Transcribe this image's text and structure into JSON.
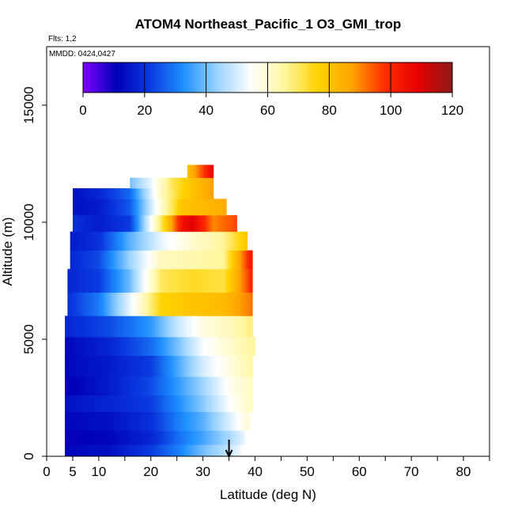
{
  "chart_data": {
    "type": "heatmap",
    "title": "ATOM4 Northeast_Pacific_1 O3_GMI_trop",
    "flights_label": "Flts: 1,2",
    "mmdd_label": "MMDD: 0424,0427",
    "xlabel": "Latitude (deg N)",
    "ylabel": "Altitude (m)",
    "xlim": [
      0,
      85
    ],
    "ylim": [
      0,
      17500
    ],
    "x_ticks": [
      0,
      5,
      10,
      20,
      30,
      40,
      50,
      60,
      70,
      80
    ],
    "y_ticks": [
      0,
      5000,
      10000,
      15000
    ],
    "colorbar": {
      "ticks": [
        0,
        20,
        40,
        60,
        80,
        100,
        120
      ],
      "range": [
        0,
        120
      ],
      "colors": [
        "#7f00ff",
        "#0000b8",
        "#0a3ae0",
        "#1e90ff",
        "#9cd3ff",
        "#ffffff",
        "#fff6a0",
        "#ffd200",
        "#ffa500",
        "#ff2a00",
        "#e60000",
        "#8b1a1a"
      ]
    },
    "arrow_latitude": 35,
    "layers": [
      {
        "alt": [
          0,
          500
        ],
        "lat": [
          3.5,
          38
        ],
        "values": [
          [
            3.5,
            12
          ],
          [
            12,
            14
          ],
          [
            20,
            22
          ],
          [
            25,
            30
          ],
          [
            30,
            40
          ],
          [
            35,
            48
          ],
          [
            38,
            55
          ]
        ]
      },
      {
        "alt": [
          500,
          1100
        ],
        "lat": [
          3.5,
          38
        ],
        "values": [
          [
            3.5,
            10
          ],
          [
            12,
            12
          ],
          [
            20,
            18
          ],
          [
            25,
            28
          ],
          [
            30,
            36
          ],
          [
            35,
            45
          ],
          [
            38,
            52
          ]
        ]
      },
      {
        "alt": [
          1100,
          1900
        ],
        "lat": [
          3.5,
          39
        ],
        "values": [
          [
            3.5,
            12
          ],
          [
            12,
            14
          ],
          [
            20,
            20
          ],
          [
            25,
            30
          ],
          [
            30,
            38
          ],
          [
            35,
            50
          ],
          [
            39,
            60
          ]
        ]
      },
      {
        "alt": [
          1900,
          2600
        ],
        "lat": [
          3.5,
          39.5
        ],
        "values": [
          [
            3.5,
            14
          ],
          [
            12,
            18
          ],
          [
            20,
            22
          ],
          [
            25,
            32
          ],
          [
            30,
            42
          ],
          [
            35,
            54
          ],
          [
            39.5,
            62
          ]
        ]
      },
      {
        "alt": [
          2600,
          3400
        ],
        "lat": [
          3.5,
          39.5
        ],
        "values": [
          [
            3.5,
            10
          ],
          [
            12,
            16
          ],
          [
            20,
            24
          ],
          [
            25,
            34
          ],
          [
            30,
            44
          ],
          [
            35,
            56
          ],
          [
            39.5,
            62
          ]
        ]
      },
      {
        "alt": [
          3400,
          4300
        ],
        "lat": [
          3.5,
          39.5
        ],
        "values": [
          [
            3.5,
            12
          ],
          [
            12,
            16
          ],
          [
            20,
            22
          ],
          [
            25,
            36
          ],
          [
            30,
            50
          ],
          [
            35,
            58
          ],
          [
            39.5,
            65
          ]
        ]
      },
      {
        "alt": [
          4300,
          5100
        ],
        "lat": [
          3.5,
          40
        ],
        "values": [
          [
            3.5,
            12
          ],
          [
            12,
            18
          ],
          [
            20,
            28
          ],
          [
            25,
            40
          ],
          [
            30,
            54
          ],
          [
            35,
            60
          ],
          [
            40,
            66
          ]
        ]
      },
      {
        "alt": [
          5100,
          6000
        ],
        "lat": [
          3.5,
          39.5
        ],
        "values": [
          [
            3.5,
            18
          ],
          [
            12,
            24
          ],
          [
            20,
            34
          ],
          [
            25,
            48
          ],
          [
            30,
            58
          ],
          [
            35,
            62
          ],
          [
            39.5,
            68
          ]
        ]
      },
      {
        "alt": [
          6000,
          7000
        ],
        "lat": [
          4,
          39.5
        ],
        "values": [
          [
            4,
            20
          ],
          [
            10,
            30
          ],
          [
            16,
            52
          ],
          [
            22,
            76
          ],
          [
            28,
            80
          ],
          [
            34,
            82
          ],
          [
            39.5,
            92
          ]
        ]
      },
      {
        "alt": [
          7000,
          8000
        ],
        "lat": [
          4,
          39.5
        ],
        "values": [
          [
            4,
            18
          ],
          [
            10,
            22
          ],
          [
            16,
            40
          ],
          [
            22,
            70
          ],
          [
            28,
            74
          ],
          [
            34,
            72
          ],
          [
            39.5,
            100
          ]
        ]
      },
      {
        "alt": [
          8000,
          8800
        ],
        "lat": [
          4.5,
          39.5
        ],
        "values": [
          [
            4.5,
            18
          ],
          [
            10,
            24
          ],
          [
            16,
            44
          ],
          [
            22,
            62
          ],
          [
            28,
            64
          ],
          [
            34,
            66
          ],
          [
            39.5,
            104
          ]
        ]
      },
      {
        "alt": [
          8800,
          9600
        ],
        "lat": [
          4.5,
          38.5
        ],
        "values": [
          [
            4.5,
            16
          ],
          [
            10,
            20
          ],
          [
            16,
            38
          ],
          [
            22,
            52
          ],
          [
            28,
            60
          ],
          [
            34,
            66
          ],
          [
            38.5,
            80
          ]
        ]
      },
      {
        "alt": [
          9600,
          10300
        ],
        "lat": [
          5,
          36.5
        ],
        "values": [
          [
            5,
            20
          ],
          [
            10,
            16
          ],
          [
            16,
            22
          ],
          [
            22,
            70
          ],
          [
            26,
            104
          ],
          [
            28,
            110
          ],
          [
            32,
            90
          ],
          [
            36.5,
            96
          ]
        ]
      },
      {
        "alt": [
          10300,
          11000
        ],
        "lat": [
          5,
          34.5
        ],
        "values": [
          [
            5,
            14
          ],
          [
            10,
            16
          ],
          [
            16,
            26
          ],
          [
            22,
            60
          ],
          [
            26,
            80
          ],
          [
            30,
            82
          ],
          [
            34.5,
            86
          ]
        ]
      },
      {
        "alt": [
          11000,
          11450
        ],
        "lat": [
          5,
          32
        ],
        "values": [
          [
            5,
            14
          ],
          [
            10,
            18
          ],
          [
            16,
            28
          ],
          [
            22,
            62
          ],
          [
            26,
            76
          ],
          [
            32,
            88
          ]
        ]
      },
      {
        "alt": [
          11450,
          11900
        ],
        "lat": [
          16,
          32
        ],
        "values": [
          [
            16,
            40
          ],
          [
            20,
            52
          ],
          [
            24,
            70
          ],
          [
            28,
            80
          ],
          [
            32,
            88
          ]
        ]
      },
      {
        "alt": [
          11900,
          12450
        ],
        "lat": [
          27,
          32
        ],
        "values": [
          [
            27,
            80
          ],
          [
            30,
            96
          ],
          [
            32,
            108
          ]
        ]
      }
    ]
  }
}
